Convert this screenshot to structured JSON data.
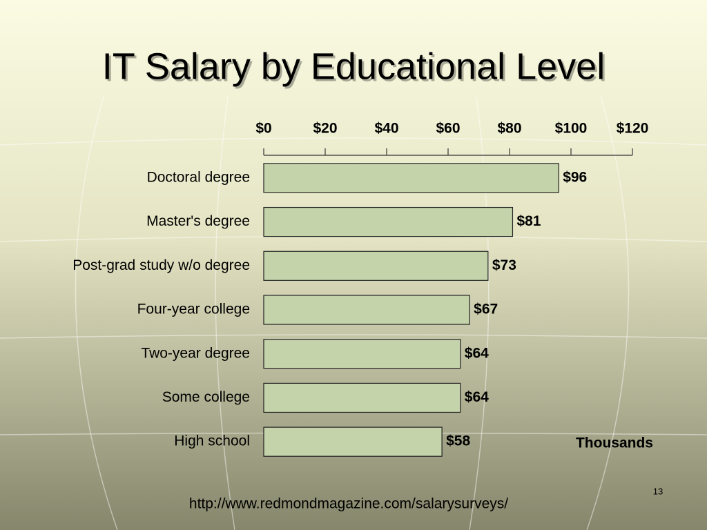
{
  "chart_data": {
    "type": "bar",
    "orientation": "horizontal",
    "title": "IT Salary by Educational Level",
    "categories": [
      "Doctoral degree",
      "Master's degree",
      "Post-grad study w/o degree",
      "Four-year college",
      "Two-year degree",
      "Some college",
      "High school"
    ],
    "values": [
      96,
      81,
      73,
      67,
      64,
      64,
      58
    ],
    "value_labels": [
      "$96",
      "$81",
      "$73",
      "$67",
      "$64",
      "$64",
      "$58"
    ],
    "color": "#c5d3ab",
    "xlim": [
      0,
      120
    ],
    "xticks": [
      {
        "value": 0,
        "label": "$0"
      },
      {
        "value": 20,
        "label": "$20"
      },
      {
        "value": 40,
        "label": "$40"
      },
      {
        "value": 60,
        "label": "$60"
      },
      {
        "value": 80,
        "label": "$80"
      },
      {
        "value": 100,
        "label": "$100"
      },
      {
        "value": 120,
        "label": "$120"
      }
    ],
    "axis_label": "Thousands",
    "source": "http://www.redmondmagazine.com/salarysurveys/",
    "page_number": "13"
  }
}
